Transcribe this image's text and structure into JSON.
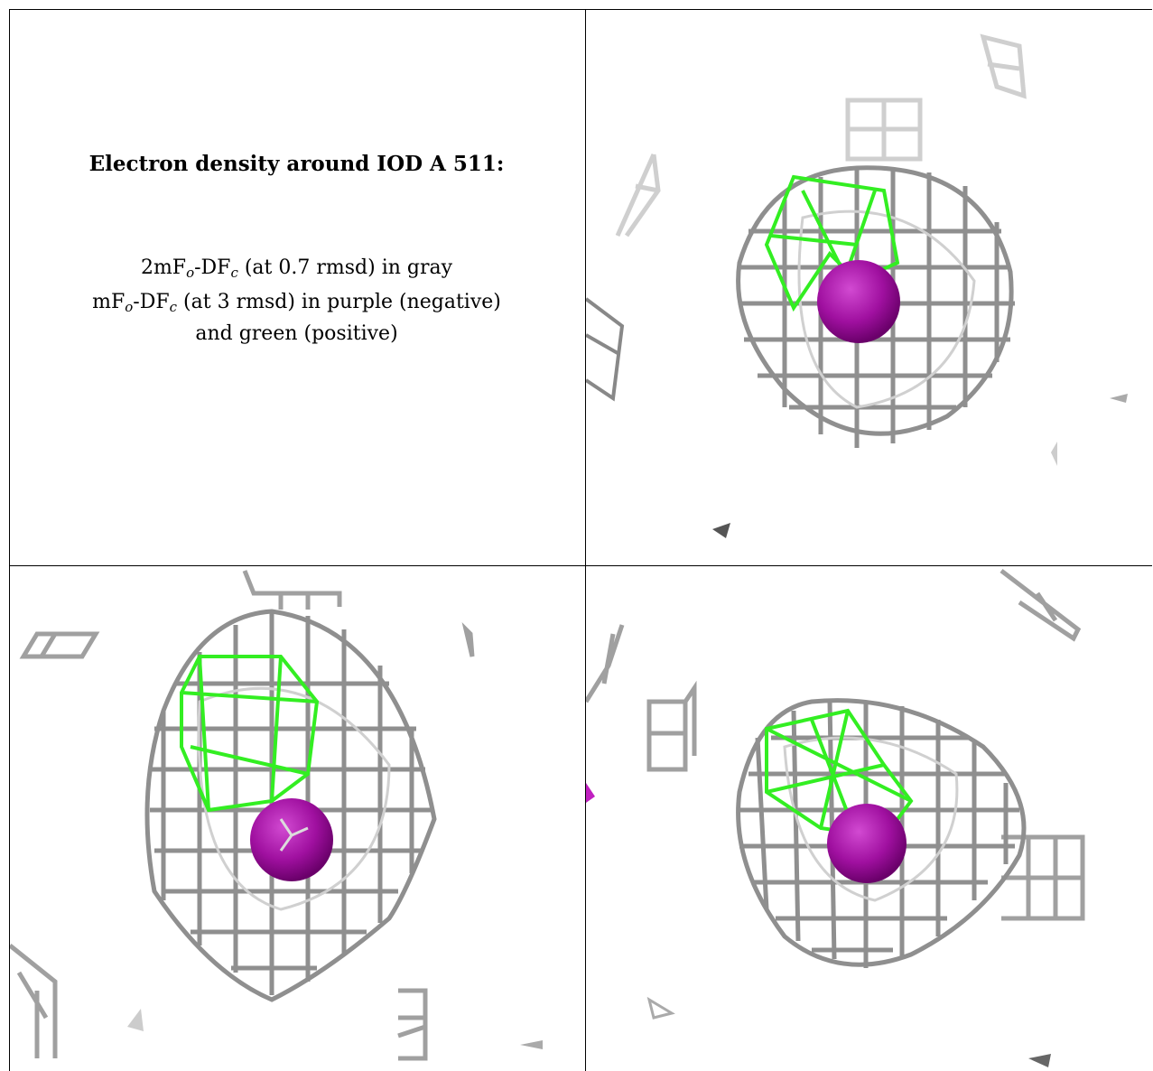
{
  "caption": {
    "title": "Electron density around IOD A 511:",
    "line1_prefix": "2mF",
    "line1_sub1": "o",
    "line1_mid": "-DF",
    "line1_sub2": "c",
    "line1_suffix": " (at 0.7 rmsd) in gray",
    "line2_prefix": "mF",
    "line2_sub1": "o",
    "line2_mid": "-DF",
    "line2_sub2": "c",
    "line2_suffix": " (at 3 rmsd) in purple (negative)",
    "line3": "and green (positive)"
  },
  "colors": {
    "mesh_gray": "#8f8f8f",
    "mesh_light": "#d0d0d0",
    "positive_green": "#33ee22",
    "atom_purple": "#a010a0",
    "border": "#000000"
  },
  "panels": [
    {
      "name": "view-top-right",
      "atom": "iodine-sphere"
    },
    {
      "name": "view-bottom-left",
      "atom": "iodine-sphere"
    },
    {
      "name": "view-bottom-right",
      "atom": "iodine-sphere"
    }
  ]
}
